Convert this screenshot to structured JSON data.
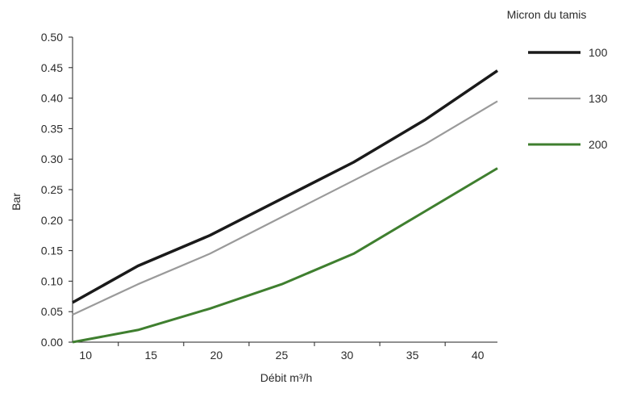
{
  "chart_data": {
    "type": "line",
    "xlabel": "Débit m³/h",
    "ylabel": "Bar",
    "legend_title": "Micron du tamis",
    "legend_position": "top-right",
    "grid": false,
    "xlim": [
      9,
      41.5
    ],
    "ylim": [
      0,
      0.5
    ],
    "xticks": [
      10,
      15,
      20,
      25,
      30,
      35,
      40
    ],
    "yticks": [
      "0.00",
      "0.05",
      "0.10",
      "0.15",
      "0.20",
      "0.25",
      "0.30",
      "0.35",
      "0.40",
      "0.45",
      "0.50"
    ],
    "series": [
      {
        "name": "100",
        "color": "#1a1a1a",
        "x": [
          9,
          14,
          19.5,
          25,
          30.5,
          36,
          41.5
        ],
        "y": [
          0.065,
          0.125,
          0.175,
          0.235,
          0.295,
          0.365,
          0.445
        ]
      },
      {
        "name": "130",
        "color": "#9a9a9a",
        "x": [
          9,
          14,
          19.5,
          25,
          30.5,
          36,
          41.5
        ],
        "y": [
          0.045,
          0.095,
          0.145,
          0.205,
          0.265,
          0.325,
          0.395
        ]
      },
      {
        "name": "200",
        "color": "#3f7f2f",
        "x": [
          9,
          14,
          19.5,
          25,
          30.5,
          36,
          41.5
        ],
        "y": [
          0.0,
          0.02,
          0.055,
          0.095,
          0.145,
          0.215,
          0.285
        ]
      }
    ]
  }
}
